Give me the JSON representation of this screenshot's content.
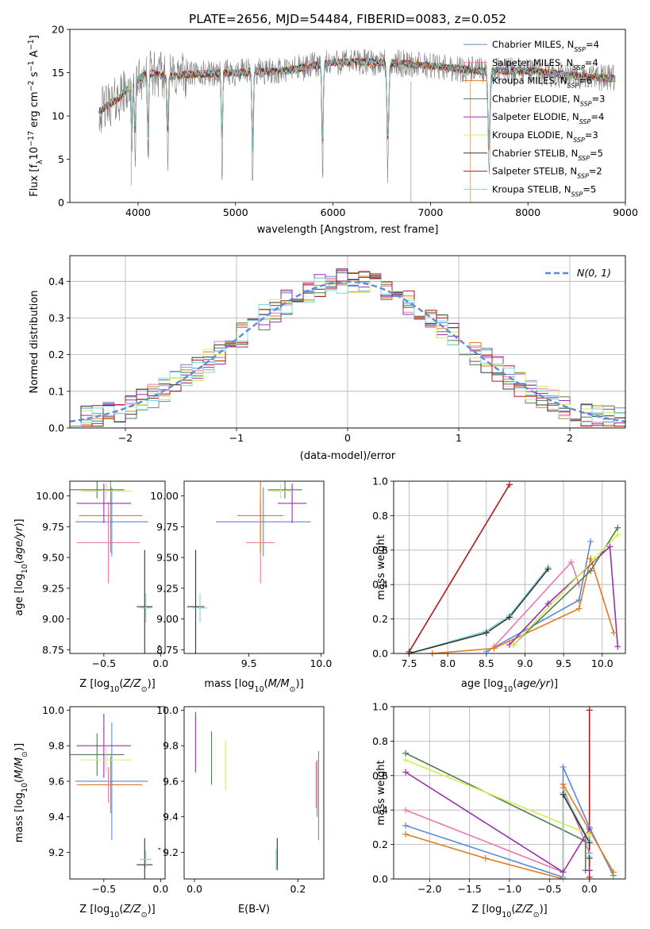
{
  "figure_title": "PLATE=2656, MJD=54484, FIBERID=0083, z=0.052",
  "colors": {
    "Chabrier MILES": "#5b8ad9",
    "Salpeter MILES": "#e879b0",
    "Kroupa MILES": "#e07b1f",
    "Chabrier ELODIE": "#4f7f4f",
    "Salpeter ELODIE": "#9a2fb0",
    "Kroupa ELODIE": "#d4ec5a",
    "Chabrier STELIB": "#333333",
    "Salpeter STELIB": "#b01818",
    "Kroupa STELIB": "#7fd8d8",
    "data": "#7f7f7f",
    "normal": "#5b8ad9"
  },
  "chart_data": [
    {
      "id": "spectrum",
      "type": "line",
      "title": "PLATE=2656, MJD=54484, FIBERID=0083, z=0.052",
      "xlabel": "wavelength [Angstrom, rest frame]",
      "ylabel": "Flux [f_λ 10^-17 erg cm^-2 s^-1 A^-1]",
      "xlim": [
        3300,
        9000
      ],
      "ylim": [
        0,
        20
      ],
      "xticks": [
        4000,
        5000,
        6000,
        7000,
        8000,
        9000
      ],
      "yticks": [
        0,
        5,
        10,
        15,
        20
      ],
      "legend_position": "top-right",
      "legend": [
        {
          "name": "Chabrier MILES",
          "nssp": "4"
        },
        {
          "name": "Salpeter MILES",
          "nssp": "4"
        },
        {
          "name": "Kroupa MILES",
          "nssp": "6"
        },
        {
          "name": "Chabrier ELODIE",
          "nssp": "3"
        },
        {
          "name": "Salpeter ELODIE",
          "nssp": "4"
        },
        {
          "name": "Kroupa ELODIE",
          "nssp": "3"
        },
        {
          "name": "Chabrier STELIB",
          "nssp": "5"
        },
        {
          "name": "Salpeter STELIB",
          "nssp": "2"
        },
        {
          "name": "Kroupa STELIB",
          "nssp": "5"
        }
      ],
      "continuum": [
        [
          3600,
          10.5
        ],
        [
          3700,
          11.3
        ],
        [
          3800,
          12
        ],
        [
          3900,
          13.2
        ],
        [
          4000,
          14.2
        ],
        [
          4100,
          15
        ],
        [
          4300,
          14.5
        ],
        [
          4500,
          14.8
        ],
        [
          5000,
          15
        ],
        [
          5500,
          15.2
        ],
        [
          6000,
          16.2
        ],
        [
          6500,
          16.2
        ],
        [
          7000,
          15.8
        ],
        [
          7500,
          15.2
        ],
        [
          8000,
          15.2
        ],
        [
          8500,
          14.6
        ],
        [
          8900,
          14.3
        ]
      ],
      "absorption_features": [
        [
          3934,
          7.5
        ],
        [
          3969,
          8
        ],
        [
          4102,
          10.5
        ],
        [
          4304,
          8.5
        ],
        [
          4861,
          11.5
        ],
        [
          5175,
          13
        ],
        [
          5893,
          13.8
        ],
        [
          6563,
          13
        ],
        [
          7600,
          12.5
        ]
      ]
    },
    {
      "id": "residuals",
      "type": "step",
      "xlabel": "(data-model)/error",
      "ylabel": "Normed distribution",
      "xlim": [
        -2.5,
        2.5
      ],
      "ylim": [
        0,
        0.47
      ],
      "xticks": [
        -2,
        -1,
        0,
        1,
        2
      ],
      "yticks": [
        0,
        0.1,
        0.2,
        0.3,
        0.4
      ],
      "legend_position": "top-right",
      "legend_label": "N(0, 1)",
      "bin_width": 0.1,
      "bin_start": -2.5,
      "grid": true
    },
    {
      "id": "z-age",
      "type": "errorbar",
      "xlabel": "Z [log10(Z/Z⊙)]",
      "ylabel": "age  [log10(age/yr)]",
      "xlim": [
        -0.8,
        0.04
      ],
      "ylim": [
        8.72,
        10.12
      ],
      "xticks": [
        -0.5,
        0
      ],
      "yticks": [
        8.75,
        9.0,
        9.25,
        9.5,
        9.75,
        10.0
      ],
      "points": [
        {
          "series": "Chabrier MILES",
          "x": -0.43,
          "xerr": 0.32,
          "y": 9.79,
          "yerr": 0.28
        },
        {
          "series": "Salpeter MILES",
          "x": -0.46,
          "xerr": 0.28,
          "y": 9.62,
          "yerr": 0.33
        },
        {
          "series": "Kroupa MILES",
          "x": -0.44,
          "xerr": 0.28,
          "y": 9.84,
          "yerr": 0.3
        },
        {
          "series": "Chabrier ELODIE",
          "x": -0.56,
          "xerr": 0.24,
          "y": 10.05,
          "yerr": 0.07
        },
        {
          "series": "Salpeter ELODIE",
          "x": -0.5,
          "xerr": 0.24,
          "y": 9.94,
          "yerr": 0.16
        },
        {
          "series": "Kroupa ELODIE",
          "x": -0.48,
          "xerr": 0.22,
          "y": 10.04,
          "yerr": 0.06
        },
        {
          "series": "Chabrier STELIB",
          "x": -0.14,
          "xerr": 0.07,
          "y": 9.1,
          "yerr": 0.46
        },
        {
          "series": "Salpeter STELIB",
          "x": -0.01,
          "xerr": 0.01,
          "y": 8.78,
          "yerr": 0.01
        },
        {
          "series": "Kroupa STELIB",
          "x": -0.13,
          "xerr": 0.05,
          "y": 9.09,
          "yerr": 0.12
        }
      ]
    },
    {
      "id": "mass-age",
      "type": "errorbar",
      "xlabel": "mass [log10(M/M⊙)]",
      "ylabel": "",
      "xlim": [
        9.05,
        10.02
      ],
      "ylim": [
        8.72,
        10.12
      ],
      "xticks": [
        9.5,
        10.0
      ],
      "yticks": [
        8.75,
        9.0,
        9.25,
        9.5,
        9.75,
        10.0
      ],
      "points": [
        {
          "series": "Chabrier MILES",
          "x": 9.6,
          "xerr": 0.33,
          "y": 9.79,
          "yerr": 0.28
        },
        {
          "series": "Salpeter MILES",
          "x": 9.58,
          "xerr": 0.1,
          "y": 9.62,
          "yerr": 0.33
        },
        {
          "series": "Kroupa MILES",
          "x": 9.58,
          "xerr": 0.16,
          "y": 9.84,
          "yerr": 0.3
        },
        {
          "series": "Chabrier ELODIE",
          "x": 9.75,
          "xerr": 0.12,
          "y": 10.05,
          "yerr": 0.07
        },
        {
          "series": "Salpeter ELODIE",
          "x": 9.8,
          "xerr": 0.1,
          "y": 9.94,
          "yerr": 0.16
        },
        {
          "series": "Kroupa ELODIE",
          "x": 9.72,
          "xerr": 0.08,
          "y": 10.04,
          "yerr": 0.06
        },
        {
          "series": "Chabrier STELIB",
          "x": 9.13,
          "xerr": 0.06,
          "y": 9.1,
          "yerr": 0.46
        },
        {
          "series": "Kroupa STELIB",
          "x": 9.16,
          "xerr": 0.05,
          "y": 9.09,
          "yerr": 0.12
        }
      ]
    },
    {
      "id": "age-weight",
      "type": "line",
      "xlabel": "age  [log10(age/yr)]",
      "ylabel": "mass weight",
      "xlim": [
        7.3,
        10.3
      ],
      "ylim": [
        0,
        1
      ],
      "xticks": [
        7.5,
        8.0,
        8.5,
        9.0,
        9.5,
        10.0
      ],
      "yticks": [
        0.0,
        0.2,
        0.4,
        0.6,
        0.8,
        1.0
      ],
      "grid": true,
      "series": [
        {
          "name": "Chabrier MILES",
          "x": [
            8.5,
            9.7,
            9.85
          ],
          "y": [
            0.01,
            0.31,
            0.65
          ]
        },
        {
          "name": "Salpeter MILES",
          "x": [
            8.6,
            9.6,
            9.7
          ],
          "y": [
            0.04,
            0.53,
            0.4
          ]
        },
        {
          "name": "Kroupa MILES",
          "x": [
            7.8,
            8.6,
            9.7,
            9.85,
            10.15
          ],
          "y": [
            0.0,
            0.03,
            0.26,
            0.55,
            0.12
          ]
        },
        {
          "name": "Chabrier ELODIE",
          "x": [
            8.85,
            9.85,
            10.2
          ],
          "y": [
            0.05,
            0.48,
            0.73
          ]
        },
        {
          "name": "Salpeter ELODIE",
          "x": [
            8.8,
            9.3,
            10.1,
            10.2
          ],
          "y": [
            0.05,
            0.29,
            0.62,
            0.04
          ]
        },
        {
          "name": "Kroupa ELODIE",
          "x": [
            8.85,
            9.9,
            10.2
          ],
          "y": [
            0.05,
            0.55,
            0.69
          ]
        },
        {
          "name": "Salpeter STELIB",
          "x": [
            7.5,
            8.8
          ],
          "y": [
            0.01,
            0.98
          ]
        },
        {
          "name": "Kroupa STELIB",
          "x": [
            7.5,
            8.5,
            8.8,
            9.3
          ],
          "y": [
            0.0,
            0.13,
            0.22,
            0.5
          ]
        },
        {
          "name": "Chabrier STELIB",
          "x": [
            7.5,
            8.5,
            8.8,
            9.3
          ],
          "y": [
            0.0,
            0.12,
            0.21,
            0.49
          ]
        }
      ]
    },
    {
      "id": "z-mass",
      "type": "errorbar",
      "xlabel": "Z [log10(Z/Z⊙)]",
      "ylabel": "mass [log10(M/M⊙)]",
      "xlim": [
        -0.8,
        0.04
      ],
      "ylim": [
        9.05,
        10.02
      ],
      "xticks": [
        -0.5,
        0
      ],
      "yticks": [
        9.2,
        9.4,
        9.6,
        9.8,
        10.0
      ],
      "points": [
        {
          "series": "Chabrier MILES",
          "x": -0.43,
          "xerr": 0.32,
          "y": 9.6,
          "yerr": 0.33
        },
        {
          "series": "Salpeter MILES",
          "x": -0.46,
          "xerr": 0.28,
          "y": 9.58,
          "yerr": 0.1
        },
        {
          "series": "Kroupa MILES",
          "x": -0.44,
          "xerr": 0.28,
          "y": 9.58,
          "yerr": 0.16
        },
        {
          "series": "Chabrier ELODIE",
          "x": -0.56,
          "xerr": 0.24,
          "y": 9.75,
          "yerr": 0.12
        },
        {
          "series": "Salpeter ELODIE",
          "x": -0.5,
          "xerr": 0.24,
          "y": 9.8,
          "yerr": 0.18
        },
        {
          "series": "Kroupa ELODIE",
          "x": -0.48,
          "xerr": 0.22,
          "y": 9.72,
          "yerr": 0.08
        },
        {
          "series": "Chabrier STELIB",
          "x": -0.14,
          "xerr": 0.07,
          "y": 9.13,
          "yerr": 0.15
        },
        {
          "series": "Salpeter STELIB",
          "x": -0.01,
          "xerr": 0.01,
          "y": 9.22,
          "yerr": 0.005
        },
        {
          "series": "Kroupa STELIB",
          "x": -0.13,
          "xerr": 0.05,
          "y": 9.16,
          "yerr": 0.05
        }
      ]
    },
    {
      "id": "ebv-mass",
      "type": "errorbar",
      "xlabel": "E(B-V)",
      "ylabel": "",
      "xlim": [
        -0.02,
        0.25
      ],
      "ylim": [
        9.05,
        10.02
      ],
      "xticks": [
        0.0,
        0.2
      ],
      "yticks": [
        9.2,
        9.4,
        9.6,
        9.8,
        10.0
      ],
      "points": [
        {
          "series": "Chabrier MILES",
          "x": 0.24,
          "xerr": 0,
          "y": 9.52,
          "yerr": 0.25
        },
        {
          "series": "Salpeter MILES",
          "x": 0.235,
          "xerr": 0,
          "y": 9.58,
          "yerr": 0.13
        },
        {
          "series": "Kroupa MILES",
          "x": 0.237,
          "xerr": 0,
          "y": 9.56,
          "yerr": 0.16
        },
        {
          "series": "Chabrier ELODIE",
          "x": 0.033,
          "xerr": 0,
          "y": 9.73,
          "yerr": 0.15
        },
        {
          "series": "Salpeter ELODIE",
          "x": 0.002,
          "xerr": 0,
          "y": 9.82,
          "yerr": 0.17
        },
        {
          "series": "Kroupa ELODIE",
          "x": 0.06,
          "xerr": 0,
          "y": 9.69,
          "yerr": 0.14
        },
        {
          "series": "Chabrier STELIB",
          "x": 0.16,
          "xerr": 0,
          "y": 9.19,
          "yerr": 0.09
        },
        {
          "series": "Kroupa STELIB",
          "x": 0.158,
          "xerr": 0,
          "y": 9.16,
          "yerr": 0.06
        }
      ]
    },
    {
      "id": "z-weight",
      "type": "line",
      "xlabel": "Z [log10(Z/Z⊙)]",
      "ylabel": "mass weight",
      "xlim": [
        -2.45,
        0.45
      ],
      "ylim": [
        0,
        1
      ],
      "xticks": [
        -2.0,
        -1.5,
        -1.0,
        -0.5,
        0.0
      ],
      "yticks": [
        0.0,
        0.2,
        0.4,
        0.6,
        0.8,
        1.0
      ],
      "grid": true,
      "series": [
        {
          "name": "Chabrier MILES",
          "x": [
            -2.3,
            -0.33,
            -0.33,
            0.0,
            0.3
          ],
          "y": [
            0.31,
            0.01,
            0.65,
            0.3,
            0.02
          ]
        },
        {
          "name": "Salpeter MILES",
          "x": [
            -2.3,
            -0.33,
            -0.33,
            0.0
          ],
          "y": [
            0.4,
            0.04,
            0.53,
            0.15
          ]
        },
        {
          "name": "Kroupa MILES",
          "x": [
            -2.3,
            -1.3,
            -0.33,
            -0.33,
            0.3
          ],
          "y": [
            0.26,
            0.12,
            0.0,
            0.55,
            0.04
          ]
        },
        {
          "name": "Chabrier ELODIE",
          "x": [
            -2.3,
            -0.05,
            -0.05,
            0.0
          ],
          "y": [
            0.73,
            0.22,
            0.05,
            0.05
          ]
        },
        {
          "name": "Salpeter ELODIE",
          "x": [
            -2.3,
            -0.33,
            0.0,
            0.0
          ],
          "y": [
            0.62,
            0.04,
            0.29,
            0.05
          ]
        },
        {
          "name": "Kroupa ELODIE",
          "x": [
            -2.3,
            0.0
          ],
          "y": [
            0.69,
            0.26
          ]
        },
        {
          "name": "Salpeter STELIB",
          "x": [
            0.0,
            0.0
          ],
          "y": [
            0.01,
            0.98
          ]
        },
        {
          "name": "Kroupa STELIB",
          "x": [
            -0.33,
            -0.33,
            0.0,
            0.0
          ],
          "y": [
            0.0,
            0.5,
            0.22,
            0.13
          ]
        },
        {
          "name": "Chabrier STELIB",
          "x": [
            -0.33,
            0.0,
            0.0
          ],
          "y": [
            0.49,
            0.21,
            0.12
          ]
        }
      ]
    }
  ]
}
